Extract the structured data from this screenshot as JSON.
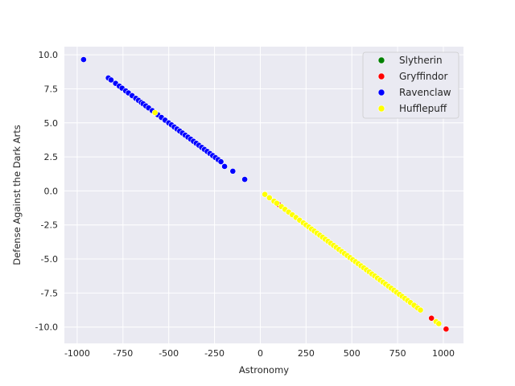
{
  "chart_data": {
    "type": "scatter",
    "title": "",
    "xlabel": "Astronomy",
    "ylabel": "Defense Against the Dark Arts",
    "xlim": [
      -1070,
      1110
    ],
    "ylim": [
      -11.2,
      10.6
    ],
    "xticks": [
      -1000,
      -750,
      -500,
      -250,
      0,
      250,
      500,
      750,
      1000
    ],
    "yticks": [
      -10.0,
      -7.5,
      -5.0,
      -2.5,
      0.0,
      2.5,
      5.0,
      7.5,
      10.0
    ],
    "grid": true,
    "legend_position": "top-right",
    "series": [
      {
        "name": "Slytherin",
        "color": "#008000",
        "points": []
      },
      {
        "name": "Gryffindor",
        "color": "#ff0000",
        "points": [
          [
            100,
            -1.0
          ],
          [
            850,
            -8.5
          ],
          [
            935,
            -9.35
          ],
          [
            1015,
            -10.15
          ]
        ]
      },
      {
        "name": "Ravenclaw",
        "color": "#0000ff",
        "points": [
          [
            -965,
            9.65
          ],
          [
            -830,
            8.3
          ],
          [
            -815,
            8.15
          ],
          [
            -790,
            7.9
          ],
          [
            -770,
            7.7
          ],
          [
            -755,
            7.55
          ],
          [
            -735,
            7.35
          ],
          [
            -720,
            7.2
          ],
          [
            -700,
            7.0
          ],
          [
            -680,
            6.8
          ],
          [
            -665,
            6.65
          ],
          [
            -650,
            6.5
          ],
          [
            -640,
            6.4
          ],
          [
            -625,
            6.25
          ],
          [
            -610,
            6.1
          ],
          [
            -590,
            5.9
          ],
          [
            -560,
            5.6
          ],
          [
            -540,
            5.4
          ],
          [
            -520,
            5.2
          ],
          [
            -500,
            5.0
          ],
          [
            -485,
            4.85
          ],
          [
            -470,
            4.7
          ],
          [
            -455,
            4.55
          ],
          [
            -440,
            4.4
          ],
          [
            -425,
            4.25
          ],
          [
            -410,
            4.1
          ],
          [
            -395,
            3.95
          ],
          [
            -380,
            3.8
          ],
          [
            -365,
            3.65
          ],
          [
            -350,
            3.5
          ],
          [
            -335,
            3.35
          ],
          [
            -320,
            3.2
          ],
          [
            -305,
            3.05
          ],
          [
            -290,
            2.9
          ],
          [
            -275,
            2.75
          ],
          [
            -260,
            2.6
          ],
          [
            -245,
            2.45
          ],
          [
            -230,
            2.3
          ],
          [
            -215,
            2.15
          ],
          [
            -195,
            1.8
          ],
          [
            -150,
            1.45
          ],
          [
            -85,
            0.85
          ]
        ]
      },
      {
        "name": "Hufflepuff",
        "color": "#ffff00",
        "points": [
          [
            -575,
            5.75
          ],
          [
            25,
            -0.25
          ],
          [
            50,
            -0.5
          ],
          [
            75,
            -0.75
          ],
          [
            90,
            -0.9
          ],
          [
            115,
            -1.15
          ],
          [
            135,
            -1.35
          ],
          [
            155,
            -1.55
          ],
          [
            175,
            -1.75
          ],
          [
            195,
            -1.95
          ],
          [
            215,
            -2.15
          ],
          [
            235,
            -2.35
          ],
          [
            250,
            -2.5
          ],
          [
            265,
            -2.65
          ],
          [
            280,
            -2.8
          ],
          [
            295,
            -2.95
          ],
          [
            310,
            -3.1
          ],
          [
            325,
            -3.25
          ],
          [
            340,
            -3.4
          ],
          [
            355,
            -3.55
          ],
          [
            370,
            -3.7
          ],
          [
            385,
            -3.85
          ],
          [
            400,
            -4.0
          ],
          [
            415,
            -4.15
          ],
          [
            430,
            -4.3
          ],
          [
            445,
            -4.45
          ],
          [
            460,
            -4.6
          ],
          [
            475,
            -4.75
          ],
          [
            490,
            -4.9
          ],
          [
            505,
            -5.05
          ],
          [
            520,
            -5.2
          ],
          [
            535,
            -5.35
          ],
          [
            550,
            -5.5
          ],
          [
            565,
            -5.65
          ],
          [
            580,
            -5.8
          ],
          [
            595,
            -5.95
          ],
          [
            610,
            -6.1
          ],
          [
            625,
            -6.25
          ],
          [
            640,
            -6.4
          ],
          [
            655,
            -6.55
          ],
          [
            670,
            -6.7
          ],
          [
            685,
            -6.85
          ],
          [
            700,
            -7.0
          ],
          [
            715,
            -7.15
          ],
          [
            730,
            -7.3
          ],
          [
            745,
            -7.45
          ],
          [
            760,
            -7.6
          ],
          [
            775,
            -7.75
          ],
          [
            790,
            -7.9
          ],
          [
            805,
            -8.05
          ],
          [
            820,
            -8.2
          ],
          [
            840,
            -8.4
          ],
          [
            860,
            -8.6
          ],
          [
            875,
            -8.75
          ],
          [
            960,
            -9.6
          ],
          [
            975,
            -9.75
          ]
        ]
      }
    ]
  }
}
